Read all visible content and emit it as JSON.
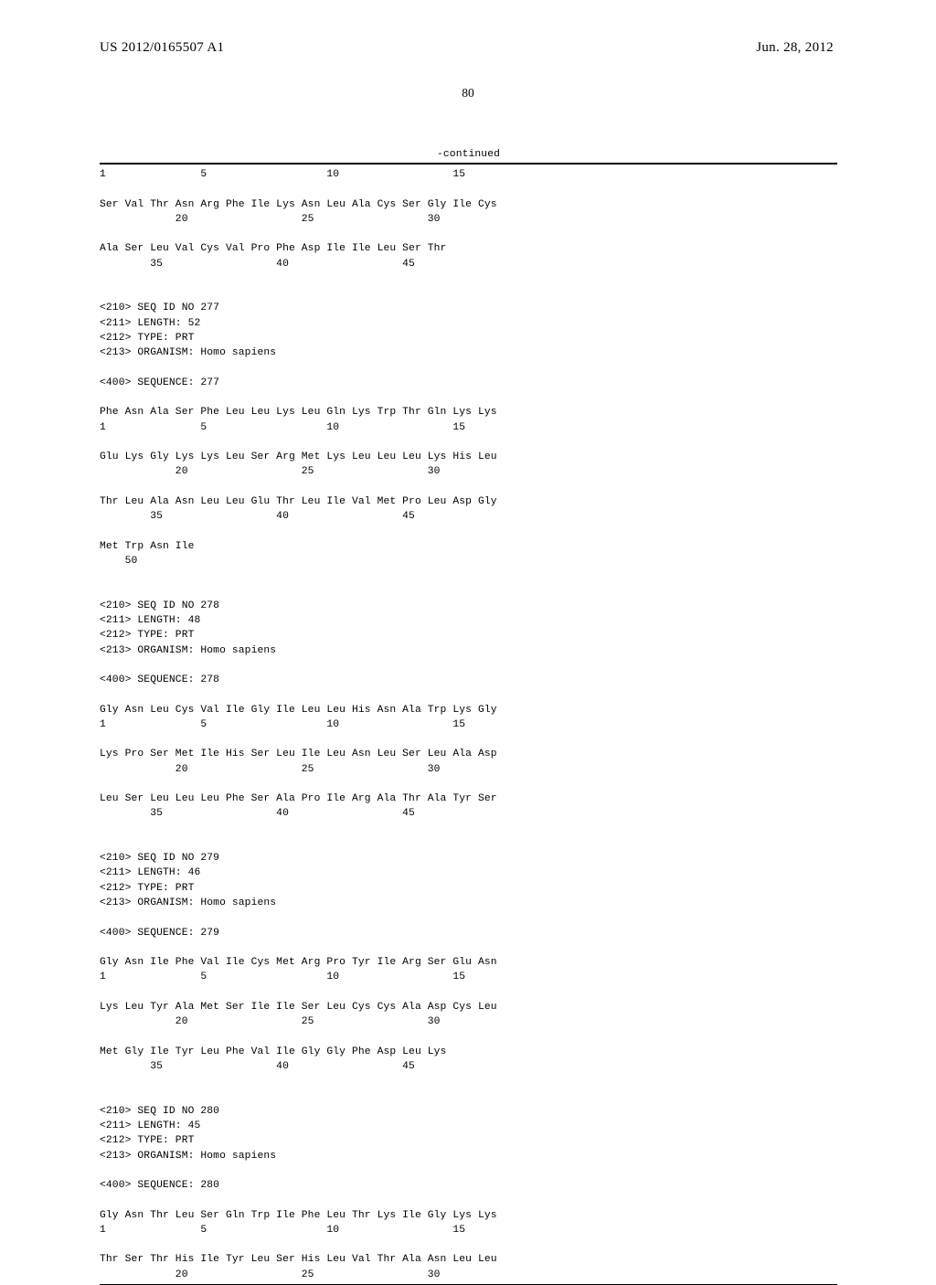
{
  "header": {
    "publication_number": "US 2012/0165507 A1",
    "publication_date": "Jun. 28, 2012"
  },
  "page_number": "80",
  "continued_label": "-continued",
  "sequence_listing": "1               5                   10                  15\n\nSer Val Thr Asn Arg Phe Ile Lys Asn Leu Ala Cys Ser Gly Ile Cys\n            20                  25                  30\n\nAla Ser Leu Val Cys Val Pro Phe Asp Ile Ile Leu Ser Thr\n        35                  40                  45\n\n\n<210> SEQ ID NO 277\n<211> LENGTH: 52\n<212> TYPE: PRT\n<213> ORGANISM: Homo sapiens\n\n<400> SEQUENCE: 277\n\nPhe Asn Ala Ser Phe Leu Leu Lys Leu Gln Lys Trp Thr Gln Lys Lys\n1               5                   10                  15\n\nGlu Lys Gly Lys Lys Leu Ser Arg Met Lys Leu Leu Leu Lys His Leu\n            20                  25                  30\n\nThr Leu Ala Asn Leu Leu Glu Thr Leu Ile Val Met Pro Leu Asp Gly\n        35                  40                  45\n\nMet Trp Asn Ile\n    50\n\n\n<210> SEQ ID NO 278\n<211> LENGTH: 48\n<212> TYPE: PRT\n<213> ORGANISM: Homo sapiens\n\n<400> SEQUENCE: 278\n\nGly Asn Leu Cys Val Ile Gly Ile Leu Leu His Asn Ala Trp Lys Gly\n1               5                   10                  15\n\nLys Pro Ser Met Ile His Ser Leu Ile Leu Asn Leu Ser Leu Ala Asp\n            20                  25                  30\n\nLeu Ser Leu Leu Leu Phe Ser Ala Pro Ile Arg Ala Thr Ala Tyr Ser\n        35                  40                  45\n\n\n<210> SEQ ID NO 279\n<211> LENGTH: 46\n<212> TYPE: PRT\n<213> ORGANISM: Homo sapiens\n\n<400> SEQUENCE: 279\n\nGly Asn Ile Phe Val Ile Cys Met Arg Pro Tyr Ile Arg Ser Glu Asn\n1               5                   10                  15\n\nLys Leu Tyr Ala Met Ser Ile Ile Ser Leu Cys Cys Ala Asp Cys Leu\n            20                  25                  30\n\nMet Gly Ile Tyr Leu Phe Val Ile Gly Gly Phe Asp Leu Lys\n        35                  40                  45\n\n\n<210> SEQ ID NO 280\n<211> LENGTH: 45\n<212> TYPE: PRT\n<213> ORGANISM: Homo sapiens\n\n<400> SEQUENCE: 280\n\nGly Asn Thr Leu Ser Gln Trp Ile Phe Leu Thr Lys Ile Gly Lys Lys\n1               5                   10                  15\n\nThr Ser Thr His Ile Tyr Leu Ser His Leu Val Thr Ala Asn Leu Leu\n            20                  25                  30"
}
